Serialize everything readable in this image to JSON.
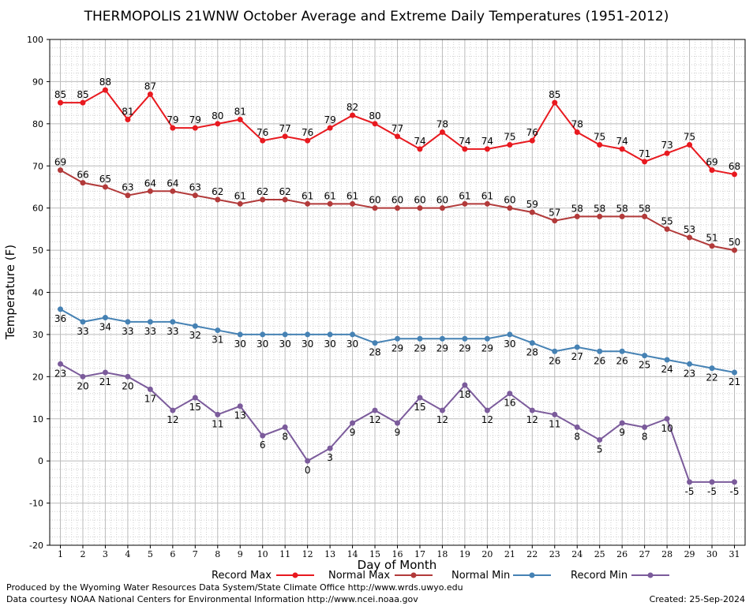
{
  "chart_data": {
    "type": "line",
    "title": "THERMOPOLIS 21WNW October Average and Extreme Daily Temperatures (1951-2012)",
    "xlabel": "Day of Month",
    "ylabel": "Temperature (F)",
    "ylim": [
      -20,
      100
    ],
    "yticks": [
      -20,
      -10,
      0,
      10,
      20,
      30,
      40,
      50,
      60,
      70,
      80,
      90,
      100
    ],
    "x": [
      1,
      2,
      3,
      4,
      5,
      6,
      7,
      8,
      9,
      10,
      11,
      12,
      13,
      14,
      15,
      16,
      17,
      18,
      19,
      20,
      21,
      22,
      23,
      24,
      25,
      26,
      27,
      28,
      29,
      30,
      31
    ],
    "grid": true,
    "legend_position": "bottom",
    "series": [
      {
        "name": "Record Max",
        "color": "#e8191f",
        "label_side": "above",
        "values": [
          85,
          85,
          88,
          81,
          87,
          79,
          79,
          80,
          81,
          76,
          77,
          76,
          79,
          82,
          80,
          77,
          74,
          78,
          74,
          74,
          75,
          76,
          85,
          78,
          75,
          74,
          71,
          73,
          75,
          69,
          68
        ]
      },
      {
        "name": "Normal Max",
        "color": "#b23a3a",
        "label_side": "above",
        "values": [
          69,
          66,
          65,
          63,
          64,
          64,
          63,
          62,
          61,
          62,
          62,
          61,
          61,
          61,
          60,
          60,
          60,
          60,
          61,
          61,
          60,
          59,
          57,
          58,
          58,
          58,
          58,
          55,
          53,
          51,
          50
        ]
      },
      {
        "name": "Normal Min",
        "color": "#4682b4",
        "label_side": "below",
        "values": [
          36,
          33,
          34,
          33,
          33,
          33,
          32,
          31,
          30,
          30,
          30,
          30,
          30,
          30,
          28,
          29,
          29,
          29,
          29,
          29,
          30,
          28,
          26,
          27,
          26,
          26,
          25,
          24,
          23,
          22,
          21
        ]
      },
      {
        "name": "Record Min",
        "color": "#7b5b9b",
        "label_side": "below",
        "values": [
          23,
          20,
          21,
          20,
          17,
          12,
          15,
          11,
          13,
          6,
          8,
          0,
          3,
          9,
          12,
          9,
          15,
          12,
          18,
          12,
          16,
          12,
          11,
          8,
          5,
          9,
          8,
          10,
          -5,
          -5,
          -5
        ]
      }
    ]
  },
  "footer": {
    "line1": "Produced by the Wyoming Water Resources Data System/State Climate Office http://www.wrds.uwyo.edu",
    "line2": "Data courtesy NOAA National Centers for Environmental Information http://www.ncei.noaa.gov",
    "created": "Created:  25-Sep-2024"
  }
}
